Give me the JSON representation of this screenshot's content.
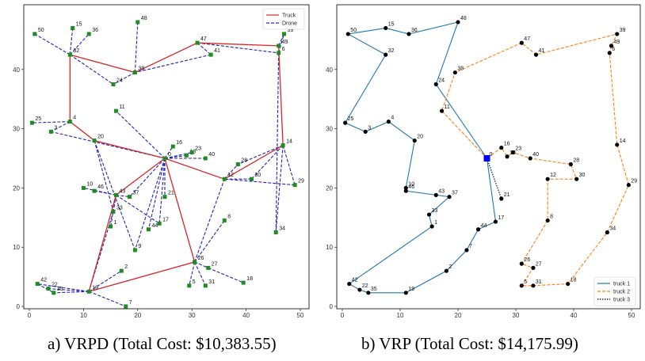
{
  "captions": {
    "left": "a)   VRPD (Total Cost: $10,383.55)",
    "right": "b) VRP (Total Cost: $14,175.99)"
  },
  "colors": {
    "truck": "#d62728",
    "drone": "#2424b0",
    "truck1": "#1f77b4",
    "truck2": "#ff7f0e",
    "truck3": "#000000",
    "node_vrpd": "#1e8c1e",
    "node_vrp": "#000000",
    "depot_vrp": "#0000ff"
  },
  "chart_data": [
    {
      "type": "scatter",
      "title": "VRPD",
      "xlim": [
        0,
        50
      ],
      "ylim": [
        0,
        50
      ],
      "xticks": [
        0,
        10,
        20,
        30,
        40,
        50
      ],
      "yticks": [
        0,
        10,
        20,
        30,
        40
      ],
      "legend": [
        {
          "label": "Truck",
          "style": "solid",
          "color": "#d62728"
        },
        {
          "label": "Drone",
          "style": "dashed",
          "color": "#2424b0"
        }
      ],
      "legend_position": "top-right",
      "nodes": [
        {
          "id": "0",
          "x": 25,
          "y": 25
        },
        {
          "id": "1",
          "x": 15,
          "y": 13.5
        },
        {
          "id": "2",
          "x": 17,
          "y": 6
        },
        {
          "id": "3",
          "x": 4,
          "y": 29.5
        },
        {
          "id": "4",
          "x": 7.5,
          "y": 31.2
        },
        {
          "id": "5",
          "x": 29.5,
          "y": 3.5
        },
        {
          "id": "6",
          "x": 46,
          "y": 42.8
        },
        {
          "id": "7",
          "x": 17.8,
          "y": 0
        },
        {
          "id": "8",
          "x": 36,
          "y": 14.5
        },
        {
          "id": "9",
          "x": 19.5,
          "y": 9.5
        },
        {
          "id": "10",
          "x": 10,
          "y": 20
        },
        {
          "id": "11",
          "x": 16,
          "y": 33
        },
        {
          "id": "12",
          "x": 36,
          "y": 21.5
        },
        {
          "id": "13",
          "x": 29,
          "y": 25.5
        },
        {
          "id": "14",
          "x": 46.8,
          "y": 27.2
        },
        {
          "id": "15",
          "x": 8,
          "y": 47
        },
        {
          "id": "16",
          "x": 26.5,
          "y": 27
        },
        {
          "id": "17",
          "x": 24,
          "y": 14
        },
        {
          "id": "18",
          "x": 39.5,
          "y": 4
        },
        {
          "id": "19",
          "x": 11,
          "y": 2.5
        },
        {
          "id": "20",
          "x": 12,
          "y": 28
        },
        {
          "id": "21",
          "x": 25,
          "y": 18.5
        },
        {
          "id": "22",
          "x": 3.5,
          "y": 3
        },
        {
          "id": "23",
          "x": 30,
          "y": 26
        },
        {
          "id": "24",
          "x": 15.5,
          "y": 37.5
        },
        {
          "id": "25",
          "x": 0.5,
          "y": 31
        },
        {
          "id": "26",
          "x": 30.5,
          "y": 7.5
        },
        {
          "id": "27",
          "x": 33,
          "y": 6.5
        },
        {
          "id": "28",
          "x": 38.5,
          "y": 24
        },
        {
          "id": "29",
          "x": 49,
          "y": 20.5
        },
        {
          "id": "30",
          "x": 41,
          "y": 21.5
        },
        {
          "id": "31",
          "x": 32.5,
          "y": 3.5
        },
        {
          "id": "32",
          "x": 7.5,
          "y": 42.5
        },
        {
          "id": "33",
          "x": 15.5,
          "y": 16
        },
        {
          "id": "34",
          "x": 45.5,
          "y": 12.5
        },
        {
          "id": "35",
          "x": 4.5,
          "y": 2.3
        },
        {
          "id": "36",
          "x": 11,
          "y": 46
        },
        {
          "id": "37",
          "x": 18.5,
          "y": 18.5
        },
        {
          "id": "38",
          "x": 19.5,
          "y": 39.5
        },
        {
          "id": "39",
          "x": 47,
          "y": 46
        },
        {
          "id": "40",
          "x": 32.5,
          "y": 25
        },
        {
          "id": "41",
          "x": 33.5,
          "y": 42.5
        },
        {
          "id": "42",
          "x": 1.5,
          "y": 3.8
        },
        {
          "id": "43",
          "x": 16,
          "y": 18.8
        },
        {
          "id": "44",
          "x": 22,
          "y": 13
        },
        {
          "id": "46",
          "x": 12,
          "y": 19.5
        },
        {
          "id": "47",
          "x": 31,
          "y": 44.5
        },
        {
          "id": "48",
          "x": 20,
          "y": 48
        },
        {
          "id": "49",
          "x": 46,
          "y": 44
        },
        {
          "id": "50",
          "x": 1,
          "y": 46
        }
      ],
      "truck_route": [
        "0",
        "43",
        "19",
        "26",
        "0",
        "12",
        "14",
        "49",
        "47",
        "38",
        "32",
        "4",
        "20",
        "0"
      ],
      "drone_edges": [
        [
          "32",
          "15"
        ],
        [
          "32",
          "50"
        ],
        [
          "32",
          "36"
        ],
        [
          "38",
          "48"
        ],
        [
          "38",
          "24"
        ],
        [
          "32",
          "24"
        ],
        [
          "47",
          "41"
        ],
        [
          "41",
          "38"
        ],
        [
          "49",
          "39"
        ],
        [
          "6",
          "39"
        ],
        [
          "47",
          "6"
        ],
        [
          "12",
          "28"
        ],
        [
          "14",
          "28"
        ],
        [
          "14",
          "30"
        ],
        [
          "30",
          "12"
        ],
        [
          "14",
          "29"
        ],
        [
          "29",
          "12"
        ],
        [
          "14",
          "34"
        ],
        [
          "6",
          "34"
        ],
        [
          "0",
          "16"
        ],
        [
          "0",
          "23"
        ],
        [
          "0",
          "13"
        ],
        [
          "0",
          "40"
        ],
        [
          "0",
          "11"
        ],
        [
          "0",
          "21"
        ],
        [
          "0",
          "17"
        ],
        [
          "0",
          "44"
        ],
        [
          "0",
          "3"
        ],
        [
          "4",
          "25"
        ],
        [
          "4",
          "3"
        ],
        [
          "20",
          "33"
        ],
        [
          "20",
          "9"
        ],
        [
          "43",
          "10"
        ],
        [
          "43",
          "46"
        ],
        [
          "43",
          "37"
        ],
        [
          "43",
          "17"
        ],
        [
          "43",
          "1"
        ],
        [
          "43",
          "33"
        ],
        [
          "0",
          "37"
        ],
        [
          "0",
          "9"
        ],
        [
          "19",
          "42"
        ],
        [
          "19",
          "22"
        ],
        [
          "19",
          "35"
        ],
        [
          "42",
          "35"
        ],
        [
          "19",
          "2"
        ],
        [
          "26",
          "12"
        ],
        [
          "26",
          "8"
        ],
        [
          "26",
          "27"
        ],
        [
          "26",
          "5"
        ],
        [
          "27",
          "18"
        ],
        [
          "26",
          "31"
        ],
        [
          "19",
          "7"
        ],
        [
          "33",
          "19"
        ]
      ]
    },
    {
      "type": "scatter",
      "title": "VRP",
      "xlim": [
        0,
        50
      ],
      "ylim": [
        0,
        50
      ],
      "xticks": [
        0,
        10,
        20,
        30,
        40,
        50
      ],
      "yticks": [
        0,
        10,
        20,
        30,
        40
      ],
      "legend": [
        {
          "label": "truck 1",
          "style": "solid",
          "color": "#1f77b4"
        },
        {
          "label": "truck 2",
          "style": "dashed",
          "color": "#ff7f0e"
        },
        {
          "label": "truck 3",
          "style": "dotted",
          "color": "#000000"
        }
      ],
      "legend_position": "bottom-right",
      "depot": "0",
      "nodes": [
        {
          "id": "0",
          "x": 25,
          "y": 25
        },
        {
          "id": "1",
          "x": 15.5,
          "y": 13.5
        },
        {
          "id": "2",
          "x": 18,
          "y": 6
        },
        {
          "id": "3",
          "x": 4,
          "y": 29.5
        },
        {
          "id": "4",
          "x": 8,
          "y": 31.2
        },
        {
          "id": "5",
          "x": 31,
          "y": 3.5
        },
        {
          "id": "6",
          "x": 46.2,
          "y": 42.8
        },
        {
          "id": "7",
          "x": 21.5,
          "y": 9.5
        },
        {
          "id": "8",
          "x": 35.5,
          "y": 14.5
        },
        {
          "id": "11",
          "x": 17.2,
          "y": 33
        },
        {
          "id": "12",
          "x": 35.5,
          "y": 21.5
        },
        {
          "id": "13",
          "x": 28.5,
          "y": 25.3
        },
        {
          "id": "14",
          "x": 47.5,
          "y": 27.3
        },
        {
          "id": "15",
          "x": 7.5,
          "y": 47
        },
        {
          "id": "16",
          "x": 27.5,
          "y": 26.8
        },
        {
          "id": "17",
          "x": 26.5,
          "y": 14.3
        },
        {
          "id": "18",
          "x": 39,
          "y": 3.8
        },
        {
          "id": "19",
          "x": 11,
          "y": 2.3
        },
        {
          "id": "20",
          "x": 12.5,
          "y": 28
        },
        {
          "id": "21",
          "x": 27.5,
          "y": 18.2
        },
        {
          "id": "22",
          "x": 3,
          "y": 2.8
        },
        {
          "id": "23",
          "x": 29.5,
          "y": 26
        },
        {
          "id": "24",
          "x": 16.2,
          "y": 37.5
        },
        {
          "id": "25",
          "x": 0.5,
          "y": 31
        },
        {
          "id": "26",
          "x": 31,
          "y": 7.2
        },
        {
          "id": "27",
          "x": 33,
          "y": 6.5
        },
        {
          "id": "28",
          "x": 39.5,
          "y": 24
        },
        {
          "id": "29",
          "x": 49.5,
          "y": 20.5
        },
        {
          "id": "30",
          "x": 40.5,
          "y": 21.5
        },
        {
          "id": "31",
          "x": 33,
          "y": 3.5
        },
        {
          "id": "32",
          "x": 7.5,
          "y": 42.5
        },
        {
          "id": "33",
          "x": 15,
          "y": 15.5
        },
        {
          "id": "34",
          "x": 45.8,
          "y": 12.5
        },
        {
          "id": "35",
          "x": 4.5,
          "y": 2.3
        },
        {
          "id": "36",
          "x": 11.5,
          "y": 46
        },
        {
          "id": "37",
          "x": 18.5,
          "y": 18.5
        },
        {
          "id": "38",
          "x": 19.5,
          "y": 39.5
        },
        {
          "id": "39",
          "x": 47.5,
          "y": 46
        },
        {
          "id": "40",
          "x": 32.5,
          "y": 25
        },
        {
          "id": "41",
          "x": 33.5,
          "y": 42.5
        },
        {
          "id": "42",
          "x": 1.2,
          "y": 3.8
        },
        {
          "id": "43",
          "x": 16.2,
          "y": 18.8
        },
        {
          "id": "44",
          "x": 23.5,
          "y": 13
        },
        {
          "id": "46",
          "x": 11,
          "y": 19.5
        },
        {
          "id": "47",
          "x": 31,
          "y": 44.5
        },
        {
          "id": "48",
          "x": 20,
          "y": 48
        },
        {
          "id": "49",
          "x": 46.5,
          "y": 44
        },
        {
          "id": "50",
          "x": 1,
          "y": 46
        }
      ],
      "routes": [
        {
          "name": "truck 1",
          "path": [
            "0",
            "24",
            "48",
            "36",
            "15",
            "50",
            "32",
            "25",
            "3",
            "4",
            "20",
            "10",
            "46",
            "43",
            "37",
            "33",
            "1",
            "42",
            "22",
            "35",
            "19",
            "2",
            "7",
            "44",
            "17",
            "0"
          ]
        },
        {
          "name": "truck 2",
          "path": [
            "0",
            "11",
            "38",
            "47",
            "41",
            "39",
            "49",
            "6",
            "14",
            "29",
            "34",
            "18",
            "31",
            "5",
            "27",
            "26",
            "8",
            "12",
            "30",
            "28",
            "40",
            "23",
            "13",
            "16",
            "0"
          ]
        },
        {
          "name": "truck 3",
          "path": [
            "0",
            "21"
          ]
        }
      ],
      "extra_nodes": [
        {
          "id": "10",
          "x": 11,
          "y": 20
        }
      ]
    }
  ]
}
